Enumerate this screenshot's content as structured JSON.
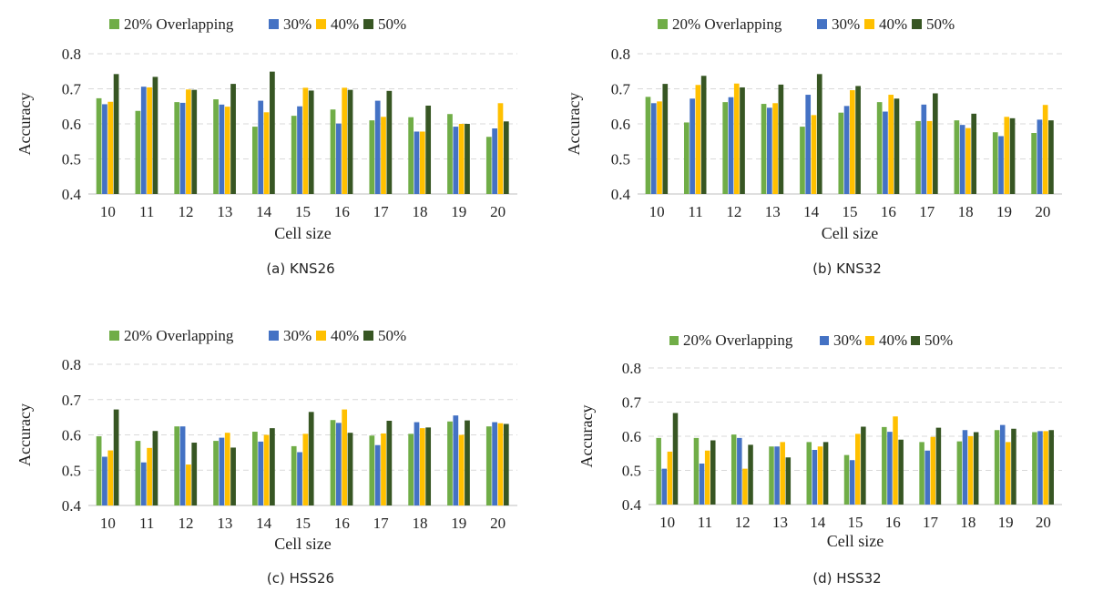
{
  "chart_data": [
    {
      "type": "bar",
      "caption": "(a) KNS26",
      "xlabel": "Cell size",
      "ylabel": "Accuracy",
      "ylim": [
        0.4,
        0.8
      ],
      "yticks": [
        "0.4",
        "0.5",
        "0.6",
        "0.7",
        "0.8"
      ],
      "grid": true,
      "legend": "top",
      "categories": [
        "10",
        "11",
        "12",
        "13",
        "14",
        "15",
        "16",
        "17",
        "18",
        "19",
        "20"
      ],
      "series": [
        {
          "name": "20% Overlapping",
          "color": "#70ad47",
          "values": [
            0.673,
            0.637,
            0.662,
            0.67,
            0.592,
            0.623,
            0.641,
            0.61,
            0.619,
            0.628,
            0.563
          ]
        },
        {
          "name": "30%",
          "color": "#4472c4",
          "values": [
            0.656,
            0.706,
            0.66,
            0.655,
            0.666,
            0.65,
            0.601,
            0.666,
            0.578,
            0.592,
            0.587
          ]
        },
        {
          "name": "40%",
          "color": "#ffc000",
          "values": [
            0.663,
            0.704,
            0.698,
            0.649,
            0.633,
            0.703,
            0.703,
            0.62,
            0.578,
            0.6,
            0.659
          ]
        },
        {
          "name": "50%",
          "color": "#375623",
          "values": [
            0.742,
            0.734,
            0.697,
            0.714,
            0.749,
            0.695,
            0.697,
            0.694,
            0.652,
            0.6,
            0.607
          ]
        }
      ]
    },
    {
      "type": "bar",
      "caption": "(b) KNS32",
      "xlabel": "Cell size",
      "ylabel": "Accuracy",
      "ylim": [
        0.4,
        0.8
      ],
      "yticks": [
        "0.4",
        "0.5",
        "0.6",
        "0.7",
        "0.8"
      ],
      "grid": true,
      "legend": "top",
      "categories": [
        "10",
        "11",
        "12",
        "13",
        "14",
        "15",
        "16",
        "17",
        "18",
        "19",
        "20"
      ],
      "series": [
        {
          "name": "20% Overlapping",
          "color": "#70ad47",
          "values": [
            0.677,
            0.604,
            0.662,
            0.657,
            0.592,
            0.632,
            0.662,
            0.608,
            0.61,
            0.576,
            0.574
          ]
        },
        {
          "name": "30%",
          "color": "#4472c4",
          "values": [
            0.659,
            0.672,
            0.676,
            0.646,
            0.683,
            0.651,
            0.635,
            0.655,
            0.597,
            0.565,
            0.612
          ]
        },
        {
          "name": "40%",
          "color": "#ffc000",
          "values": [
            0.664,
            0.711,
            0.715,
            0.659,
            0.625,
            0.696,
            0.683,
            0.608,
            0.588,
            0.62,
            0.654
          ]
        },
        {
          "name": "50%",
          "color": "#375623",
          "values": [
            0.714,
            0.737,
            0.704,
            0.712,
            0.742,
            0.708,
            0.672,
            0.687,
            0.629,
            0.616,
            0.61
          ]
        }
      ]
    },
    {
      "type": "bar",
      "caption": "(c) HSS26",
      "xlabel": "Cell size",
      "ylabel": "Accuracy",
      "ylim": [
        0.4,
        0.8
      ],
      "yticks": [
        "0.4",
        "0.5",
        "0.6",
        "0.7",
        "0.8"
      ],
      "grid": true,
      "legend": "top",
      "categories": [
        "10",
        "11",
        "12",
        "13",
        "14",
        "15",
        "16",
        "17",
        "18",
        "19",
        "20"
      ],
      "series": [
        {
          "name": "20% Overlapping",
          "color": "#70ad47",
          "values": [
            0.596,
            0.583,
            0.624,
            0.583,
            0.609,
            0.568,
            0.642,
            0.598,
            0.603,
            0.638,
            0.624
          ]
        },
        {
          "name": "30%",
          "color": "#4472c4",
          "values": [
            0.538,
            0.522,
            0.624,
            0.592,
            0.581,
            0.551,
            0.634,
            0.571,
            0.636,
            0.655,
            0.636
          ]
        },
        {
          "name": "40%",
          "color": "#ffc000",
          "values": [
            0.556,
            0.563,
            0.516,
            0.606,
            0.6,
            0.603,
            0.672,
            0.604,
            0.619,
            0.6,
            0.633
          ]
        },
        {
          "name": "50%",
          "color": "#375623",
          "values": [
            0.672,
            0.611,
            0.578,
            0.564,
            0.619,
            0.665,
            0.606,
            0.64,
            0.621,
            0.641,
            0.631
          ]
        }
      ]
    },
    {
      "type": "bar",
      "caption": "(d) HSS32",
      "xlabel": "Cell size",
      "ylabel": "Accuracy",
      "ylim": [
        0.4,
        0.8
      ],
      "yticks": [
        "0.4",
        "0.5",
        "0.6",
        "0.7",
        "0.8"
      ],
      "grid": true,
      "legend": "top",
      "categories": [
        "10",
        "11",
        "12",
        "13",
        "14",
        "15",
        "16",
        "17",
        "18",
        "19",
        "20"
      ],
      "series": [
        {
          "name": "20% Overlapping",
          "color": "#70ad47",
          "values": [
            0.595,
            0.595,
            0.605,
            0.57,
            0.583,
            0.545,
            0.627,
            0.583,
            0.585,
            0.618,
            0.612
          ]
        },
        {
          "name": "30%",
          "color": "#4472c4",
          "values": [
            0.505,
            0.52,
            0.595,
            0.57,
            0.56,
            0.53,
            0.613,
            0.558,
            0.618,
            0.633,
            0.615
          ]
        },
        {
          "name": "40%",
          "color": "#ffc000",
          "values": [
            0.555,
            0.558,
            0.505,
            0.583,
            0.57,
            0.607,
            0.658,
            0.598,
            0.6,
            0.583,
            0.615
          ]
        },
        {
          "name": "50%",
          "color": "#375623",
          "values": [
            0.668,
            0.588,
            0.575,
            0.538,
            0.583,
            0.628,
            0.59,
            0.625,
            0.612,
            0.622,
            0.618
          ]
        }
      ]
    }
  ]
}
